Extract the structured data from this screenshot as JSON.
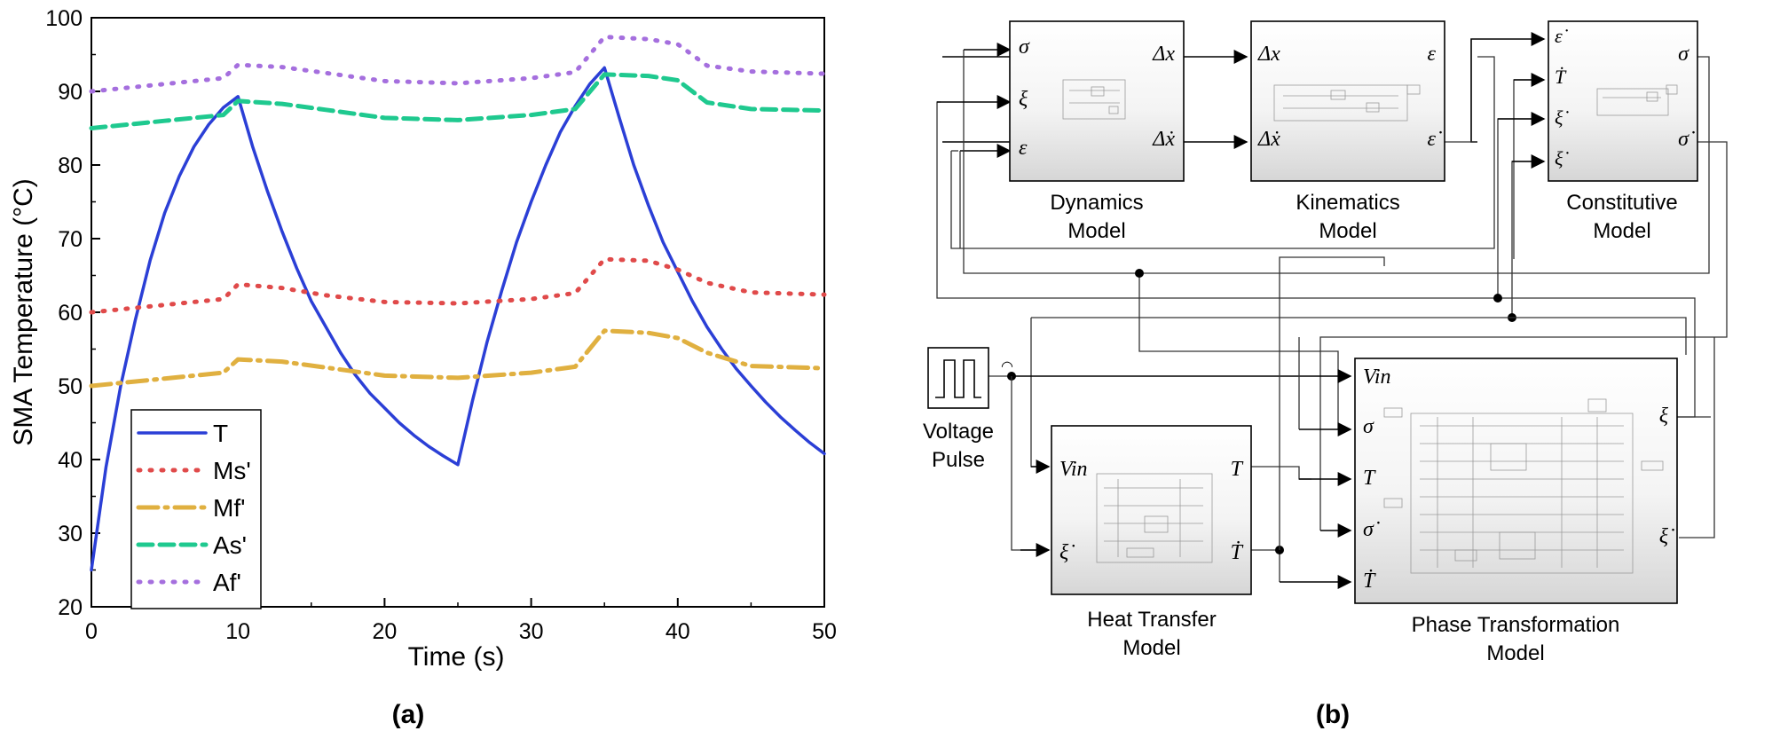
{
  "panel_a_label": "(a)",
  "panel_b_label": "(b)",
  "chart_data": {
    "type": "line",
    "xlabel": "Time (s)",
    "ylabel": "SMA Temperature (°C)",
    "xlim": [
      0,
      50
    ],
    "ylim": [
      20,
      100
    ],
    "xticks": [
      0,
      10,
      20,
      30,
      40,
      50
    ],
    "yticks": [
      20,
      30,
      40,
      50,
      60,
      70,
      80,
      90,
      100
    ],
    "grid": false,
    "legend_position": "bottom-left",
    "series": [
      {
        "name": "T",
        "color": "#2b3fd6",
        "style": "solid",
        "points": [
          [
            0,
            25
          ],
          [
            1,
            39
          ],
          [
            2,
            50
          ],
          [
            3,
            59
          ],
          [
            4,
            67
          ],
          [
            5,
            73.5
          ],
          [
            6,
            78.5
          ],
          [
            7,
            82.5
          ],
          [
            8,
            85.5
          ],
          [
            9,
            87.8
          ],
          [
            10,
            89.3
          ],
          [
            11,
            82.5
          ],
          [
            12,
            76.5
          ],
          [
            13,
            71
          ],
          [
            14,
            66
          ],
          [
            15,
            61.5
          ],
          [
            16,
            58
          ],
          [
            17,
            54.5
          ],
          [
            18,
            51.5
          ],
          [
            19,
            49
          ],
          [
            20,
            47
          ],
          [
            21,
            45
          ],
          [
            22,
            43.3
          ],
          [
            23,
            41.8
          ],
          [
            24,
            40.5
          ],
          [
            25,
            39.3
          ],
          [
            26,
            48
          ],
          [
            27,
            56
          ],
          [
            28,
            63
          ],
          [
            29,
            69.5
          ],
          [
            30,
            75
          ],
          [
            31,
            80
          ],
          [
            32,
            84.5
          ],
          [
            33,
            88
          ],
          [
            34,
            91
          ],
          [
            35,
            93.2
          ],
          [
            36,
            86.5
          ],
          [
            37,
            80
          ],
          [
            38,
            74.5
          ],
          [
            39,
            69.5
          ],
          [
            40,
            65.5
          ],
          [
            41,
            61.5
          ],
          [
            42,
            58
          ],
          [
            43,
            55
          ],
          [
            44,
            52.3
          ],
          [
            45,
            50
          ],
          [
            46,
            47.8
          ],
          [
            47,
            45.8
          ],
          [
            48,
            44
          ],
          [
            49,
            42.3
          ],
          [
            50,
            40.8
          ]
        ]
      },
      {
        "name": "Ms'",
        "color": "#e04a4a",
        "style": "dotted",
        "points": [
          [
            0,
            60
          ],
          [
            5,
            61
          ],
          [
            9,
            61.8
          ],
          [
            10,
            63.8
          ],
          [
            13,
            63.3
          ],
          [
            16,
            62.3
          ],
          [
            20,
            61.4
          ],
          [
            25,
            61.2
          ],
          [
            30,
            61.8
          ],
          [
            33,
            62.6
          ],
          [
            35,
            67.2
          ],
          [
            38,
            67
          ],
          [
            40,
            65.8
          ],
          [
            42,
            64
          ],
          [
            45,
            62.7
          ],
          [
            50,
            62.4
          ]
        ]
      },
      {
        "name": "Mf'",
        "color": "#e0b040",
        "style": "dashdot",
        "points": [
          [
            0,
            50
          ],
          [
            5,
            51
          ],
          [
            9,
            51.8
          ],
          [
            10,
            53.6
          ],
          [
            13,
            53.3
          ],
          [
            16,
            52.5
          ],
          [
            20,
            51.4
          ],
          [
            25,
            51.1
          ],
          [
            30,
            51.8
          ],
          [
            33,
            52.6
          ],
          [
            35,
            57.5
          ],
          [
            38,
            57.2
          ],
          [
            40,
            56.5
          ],
          [
            42,
            54.5
          ],
          [
            45,
            52.7
          ],
          [
            50,
            52.4
          ]
        ]
      },
      {
        "name": "As'",
        "color": "#1fc98f",
        "style": "dashed",
        "points": [
          [
            0,
            85
          ],
          [
            5,
            86
          ],
          [
            9,
            86.8
          ],
          [
            10,
            88.7
          ],
          [
            13,
            88.3
          ],
          [
            16,
            87.5
          ],
          [
            20,
            86.4
          ],
          [
            25,
            86.1
          ],
          [
            30,
            86.8
          ],
          [
            33,
            87.6
          ],
          [
            35,
            92.3
          ],
          [
            38,
            92.1
          ],
          [
            40,
            91.5
          ],
          [
            42,
            88.5
          ],
          [
            45,
            87.6
          ],
          [
            50,
            87.4
          ]
        ]
      },
      {
        "name": "Af'",
        "color": "#a56fde",
        "style": "dotted",
        "points": [
          [
            0,
            90
          ],
          [
            5,
            91
          ],
          [
            9,
            91.8
          ],
          [
            10,
            93.6
          ],
          [
            13,
            93.3
          ],
          [
            16,
            92.5
          ],
          [
            20,
            91.4
          ],
          [
            25,
            91.1
          ],
          [
            30,
            91.8
          ],
          [
            33,
            92.6
          ],
          [
            35,
            97.4
          ],
          [
            38,
            97.1
          ],
          [
            40,
            96.4
          ],
          [
            42,
            93.5
          ],
          [
            45,
            92.7
          ],
          [
            50,
            92.4
          ]
        ]
      }
    ]
  },
  "diagram": {
    "blocks": {
      "dynamics": {
        "title_lines": [
          "Dynamics",
          "Model"
        ],
        "inputs": [
          "σ",
          "ξ",
          "ε"
        ],
        "outputs": [
          "Δx",
          "Δẋ"
        ]
      },
      "kinematics": {
        "title_lines": [
          "Kinematics",
          "Model"
        ],
        "inputs": [
          "Δx",
          "Δẋ"
        ],
        "outputs": [
          "ε",
          "ε̇"
        ]
      },
      "constitutive": {
        "title_lines": [
          "Constitutive",
          "Model"
        ],
        "inputs": [
          "ε̇",
          "Ṫ",
          "ξ̇",
          "ξ̇"
        ],
        "outputs": [
          "σ",
          "σ̇"
        ]
      },
      "heat": {
        "title_lines": [
          "Heat Transfer",
          "Model"
        ],
        "inputs": [
          "Vin",
          "ξ̇"
        ],
        "outputs": [
          "T",
          "Ṫ"
        ]
      },
      "phase": {
        "title_lines": [
          "Phase Transformation",
          "Model"
        ],
        "inputs": [
          "Vin",
          "σ",
          "T",
          "σ̇",
          "Ṫ"
        ],
        "outputs": [
          "ξ",
          "ξ̇"
        ]
      },
      "pulse": {
        "title_lines": [
          "Voltage",
          "Pulse"
        ]
      }
    }
  }
}
